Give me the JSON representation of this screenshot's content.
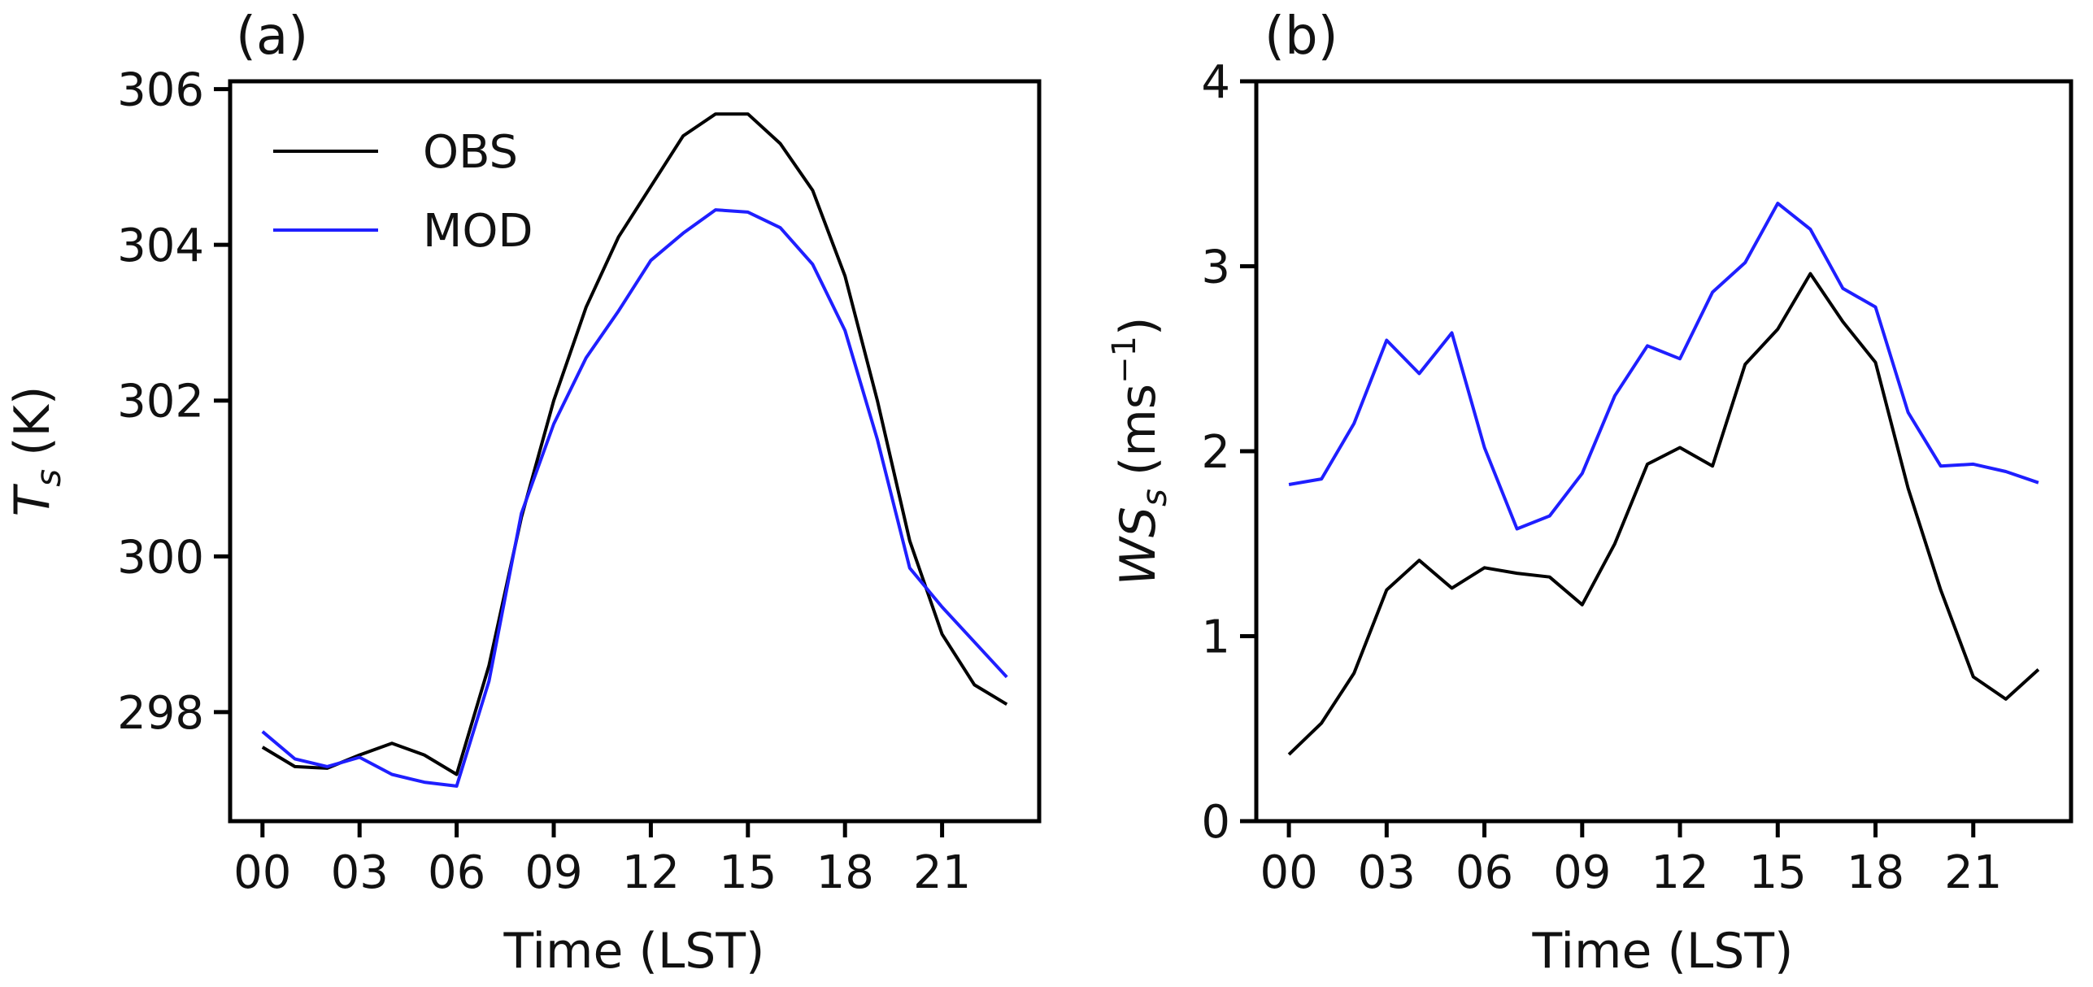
{
  "chart_data": [
    {
      "type": "line",
      "panel": "(a)",
      "xlabel": "Time (LST)",
      "ylabel": "T_s (K)",
      "ylabel_main": "T",
      "ylabel_sub": "s",
      "ylabel_unit": "(K)",
      "xlim": [
        -1,
        24
      ],
      "ylim": [
        296.6,
        306.1
      ],
      "xticks": [
        0,
        3,
        6,
        9,
        12,
        15,
        18,
        21
      ],
      "xtick_labels": [
        "00",
        "03",
        "06",
        "09",
        "12",
        "15",
        "18",
        "21"
      ],
      "yticks": [
        298,
        300,
        302,
        304,
        306
      ],
      "ytick_labels": [
        "298",
        "300",
        "302",
        "304",
        "306"
      ],
      "x": [
        0,
        1,
        2,
        3,
        4,
        5,
        6,
        7,
        8,
        9,
        10,
        11,
        12,
        13,
        14,
        15,
        16,
        17,
        18,
        19,
        20,
        21,
        22,
        23
      ],
      "series": [
        {
          "name": "OBS",
          "color": "#000000",
          "values": [
            297.55,
            297.3,
            297.28,
            297.45,
            297.6,
            297.45,
            297.2,
            298.6,
            300.5,
            302.0,
            303.2,
            304.1,
            304.75,
            305.4,
            305.68,
            305.68,
            305.3,
            304.7,
            303.6,
            302.0,
            300.2,
            299.0,
            298.35,
            298.1
          ]
        },
        {
          "name": "MOD",
          "color": "#1f1fff",
          "values": [
            297.75,
            297.4,
            297.3,
            297.42,
            297.2,
            297.1,
            297.05,
            298.4,
            300.55,
            301.7,
            302.55,
            303.15,
            303.8,
            304.15,
            304.45,
            304.42,
            304.22,
            303.75,
            302.9,
            301.5,
            299.85,
            299.35,
            298.9,
            298.45
          ]
        }
      ],
      "legend_position": "upper-left"
    },
    {
      "type": "line",
      "panel": "(b)",
      "xlabel": "Time (LST)",
      "ylabel": "WS_s (ms^-1)",
      "ylabel_main": "WS",
      "ylabel_sub": "s",
      "ylabel_unit_base": "(ms",
      "ylabel_unit_exp": "−1",
      "ylabel_unit_close": ")",
      "xlim": [
        -1,
        24
      ],
      "ylim": [
        0,
        4
      ],
      "xticks": [
        0,
        3,
        6,
        9,
        12,
        15,
        18,
        21
      ],
      "xtick_labels": [
        "00",
        "03",
        "06",
        "09",
        "12",
        "15",
        "18",
        "21"
      ],
      "yticks": [
        0,
        1,
        2,
        3,
        4
      ],
      "ytick_labels": [
        "0",
        "1",
        "2",
        "3",
        "4"
      ],
      "x": [
        0,
        1,
        2,
        3,
        4,
        5,
        6,
        7,
        8,
        9,
        10,
        11,
        12,
        13,
        14,
        15,
        16,
        17,
        18,
        19,
        20,
        21,
        22,
        23
      ],
      "series": [
        {
          "name": "OBS",
          "color": "#000000",
          "values": [
            0.36,
            0.53,
            0.8,
            1.25,
            1.41,
            1.26,
            1.37,
            1.34,
            1.32,
            1.17,
            1.5,
            1.93,
            2.02,
            1.92,
            2.47,
            2.66,
            2.96,
            2.7,
            2.48,
            1.8,
            1.25,
            0.78,
            0.66,
            0.82
          ]
        },
        {
          "name": "MOD",
          "color": "#1f1fff",
          "values": [
            1.82,
            1.85,
            2.15,
            2.6,
            2.42,
            2.64,
            2.02,
            1.58,
            1.65,
            1.88,
            2.3,
            2.57,
            2.5,
            2.86,
            3.02,
            3.34,
            3.2,
            2.88,
            2.78,
            2.21,
            1.92,
            1.93,
            1.89,
            1.83
          ]
        }
      ]
    }
  ]
}
